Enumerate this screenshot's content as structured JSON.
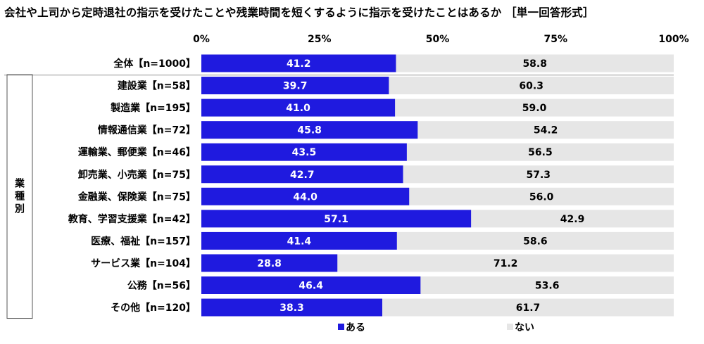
{
  "title": "会社や上司から定時退社の指示を受けたことや残業時間を短くするように指示を受けたことはあるか ［単一回答形式］",
  "colors": {
    "aru": "#1f1adf",
    "nai": "#e6e6e6"
  },
  "chart_data": {
    "type": "bar",
    "orientation": "horizontal",
    "stacked": true,
    "percent": true,
    "xlim": [
      0,
      100
    ],
    "x_ticks": [
      "0%",
      "25%",
      "50%",
      "75%",
      "100%"
    ],
    "categories": [
      "全体【n=1000】",
      "建設業【n=58】",
      "製造業【n=195】",
      "情報通信業【n=72】",
      "運輸業、郵便業【n=46】",
      "卸売業、小売業【n=75】",
      "金融業、保険業【n=75】",
      "教育、学習支援業【n=42】",
      "医療、福祉【n=157】",
      "サービス業【n=104】",
      "公務【n=56】",
      "その他【n=120】"
    ],
    "group_label": "業種別",
    "series": [
      {
        "name": "ある",
        "values": [
          41.2,
          39.7,
          41.0,
          45.8,
          43.5,
          42.7,
          44.0,
          57.1,
          41.4,
          28.8,
          46.4,
          38.3
        ]
      },
      {
        "name": "ない",
        "values": [
          58.8,
          60.3,
          59.0,
          54.2,
          56.5,
          57.3,
          56.0,
          42.9,
          58.6,
          71.2,
          53.6,
          61.7
        ]
      }
    ],
    "legend": "bottom-center",
    "grid": false
  }
}
